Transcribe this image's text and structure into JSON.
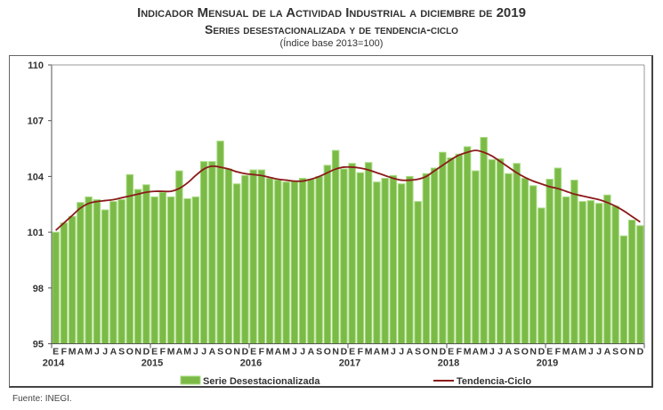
{
  "chart_data": {
    "type": "bar",
    "title": "Indicador Mensual de la Actividad Industrial a diciembre de 2019",
    "subtitle": "Series desestacionalizada y de tendencia-ciclo",
    "note": "(Índice base 2013=100)",
    "xlabel": "",
    "ylabel": "",
    "ylim": [
      95,
      110
    ],
    "yticks": [
      95,
      98,
      101,
      104,
      107,
      110
    ],
    "month_labels": [
      "E",
      "F",
      "M",
      "A",
      "M",
      "J",
      "J",
      "A",
      "S",
      "O",
      "N",
      "D"
    ],
    "years": [
      "2014",
      "2015",
      "2016",
      "2017",
      "2018",
      "2019"
    ],
    "grid": false,
    "legend_position": "bottom",
    "series": [
      {
        "name": "Serie Desestacionalizada",
        "type": "bar",
        "color": "#7cba47",
        "values": [
          101.0,
          101.5,
          101.85,
          102.6,
          102.9,
          102.75,
          102.2,
          102.65,
          102.75,
          104.1,
          103.3,
          103.55,
          102.9,
          103.15,
          102.9,
          104.3,
          102.8,
          102.9,
          104.8,
          104.8,
          105.9,
          104.4,
          103.6,
          104.05,
          104.35,
          104.35,
          103.9,
          103.8,
          103.7,
          103.75,
          103.9,
          103.85,
          104.0,
          104.6,
          105.4,
          104.4,
          104.7,
          104.2,
          104.75,
          103.7,
          103.9,
          104.05,
          103.6,
          104.0,
          102.65,
          104.15,
          104.45,
          105.3,
          105.0,
          105.2,
          105.6,
          104.3,
          106.1,
          104.9,
          104.95,
          104.15,
          104.7,
          103.9,
          103.5,
          102.3,
          103.85,
          104.45,
          102.9,
          103.8,
          102.65,
          102.7,
          102.55,
          103.0,
          102.4,
          100.8,
          101.65,
          101.35
        ]
      },
      {
        "name": "Tendencia-Ciclo",
        "type": "line",
        "color": "#8b1a1a",
        "values": [
          101.1,
          101.5,
          101.9,
          102.3,
          102.55,
          102.65,
          102.7,
          102.75,
          102.85,
          102.95,
          103.05,
          103.15,
          103.2,
          103.2,
          103.2,
          103.35,
          103.65,
          104.05,
          104.4,
          104.55,
          104.5,
          104.4,
          104.25,
          104.15,
          104.1,
          104.05,
          103.95,
          103.85,
          103.8,
          103.75,
          103.75,
          103.85,
          104.0,
          104.2,
          104.4,
          104.5,
          104.5,
          104.45,
          104.35,
          104.2,
          104.05,
          103.9,
          103.8,
          103.8,
          103.85,
          104.0,
          104.3,
          104.6,
          104.9,
          105.15,
          105.3,
          105.4,
          105.3,
          105.1,
          104.8,
          104.5,
          104.2,
          103.95,
          103.75,
          103.6,
          103.45,
          103.35,
          103.2,
          103.05,
          102.95,
          102.85,
          102.75,
          102.6,
          102.4,
          102.15,
          101.85,
          101.55
        ]
      }
    ]
  },
  "source": "Fuente: INEGI."
}
